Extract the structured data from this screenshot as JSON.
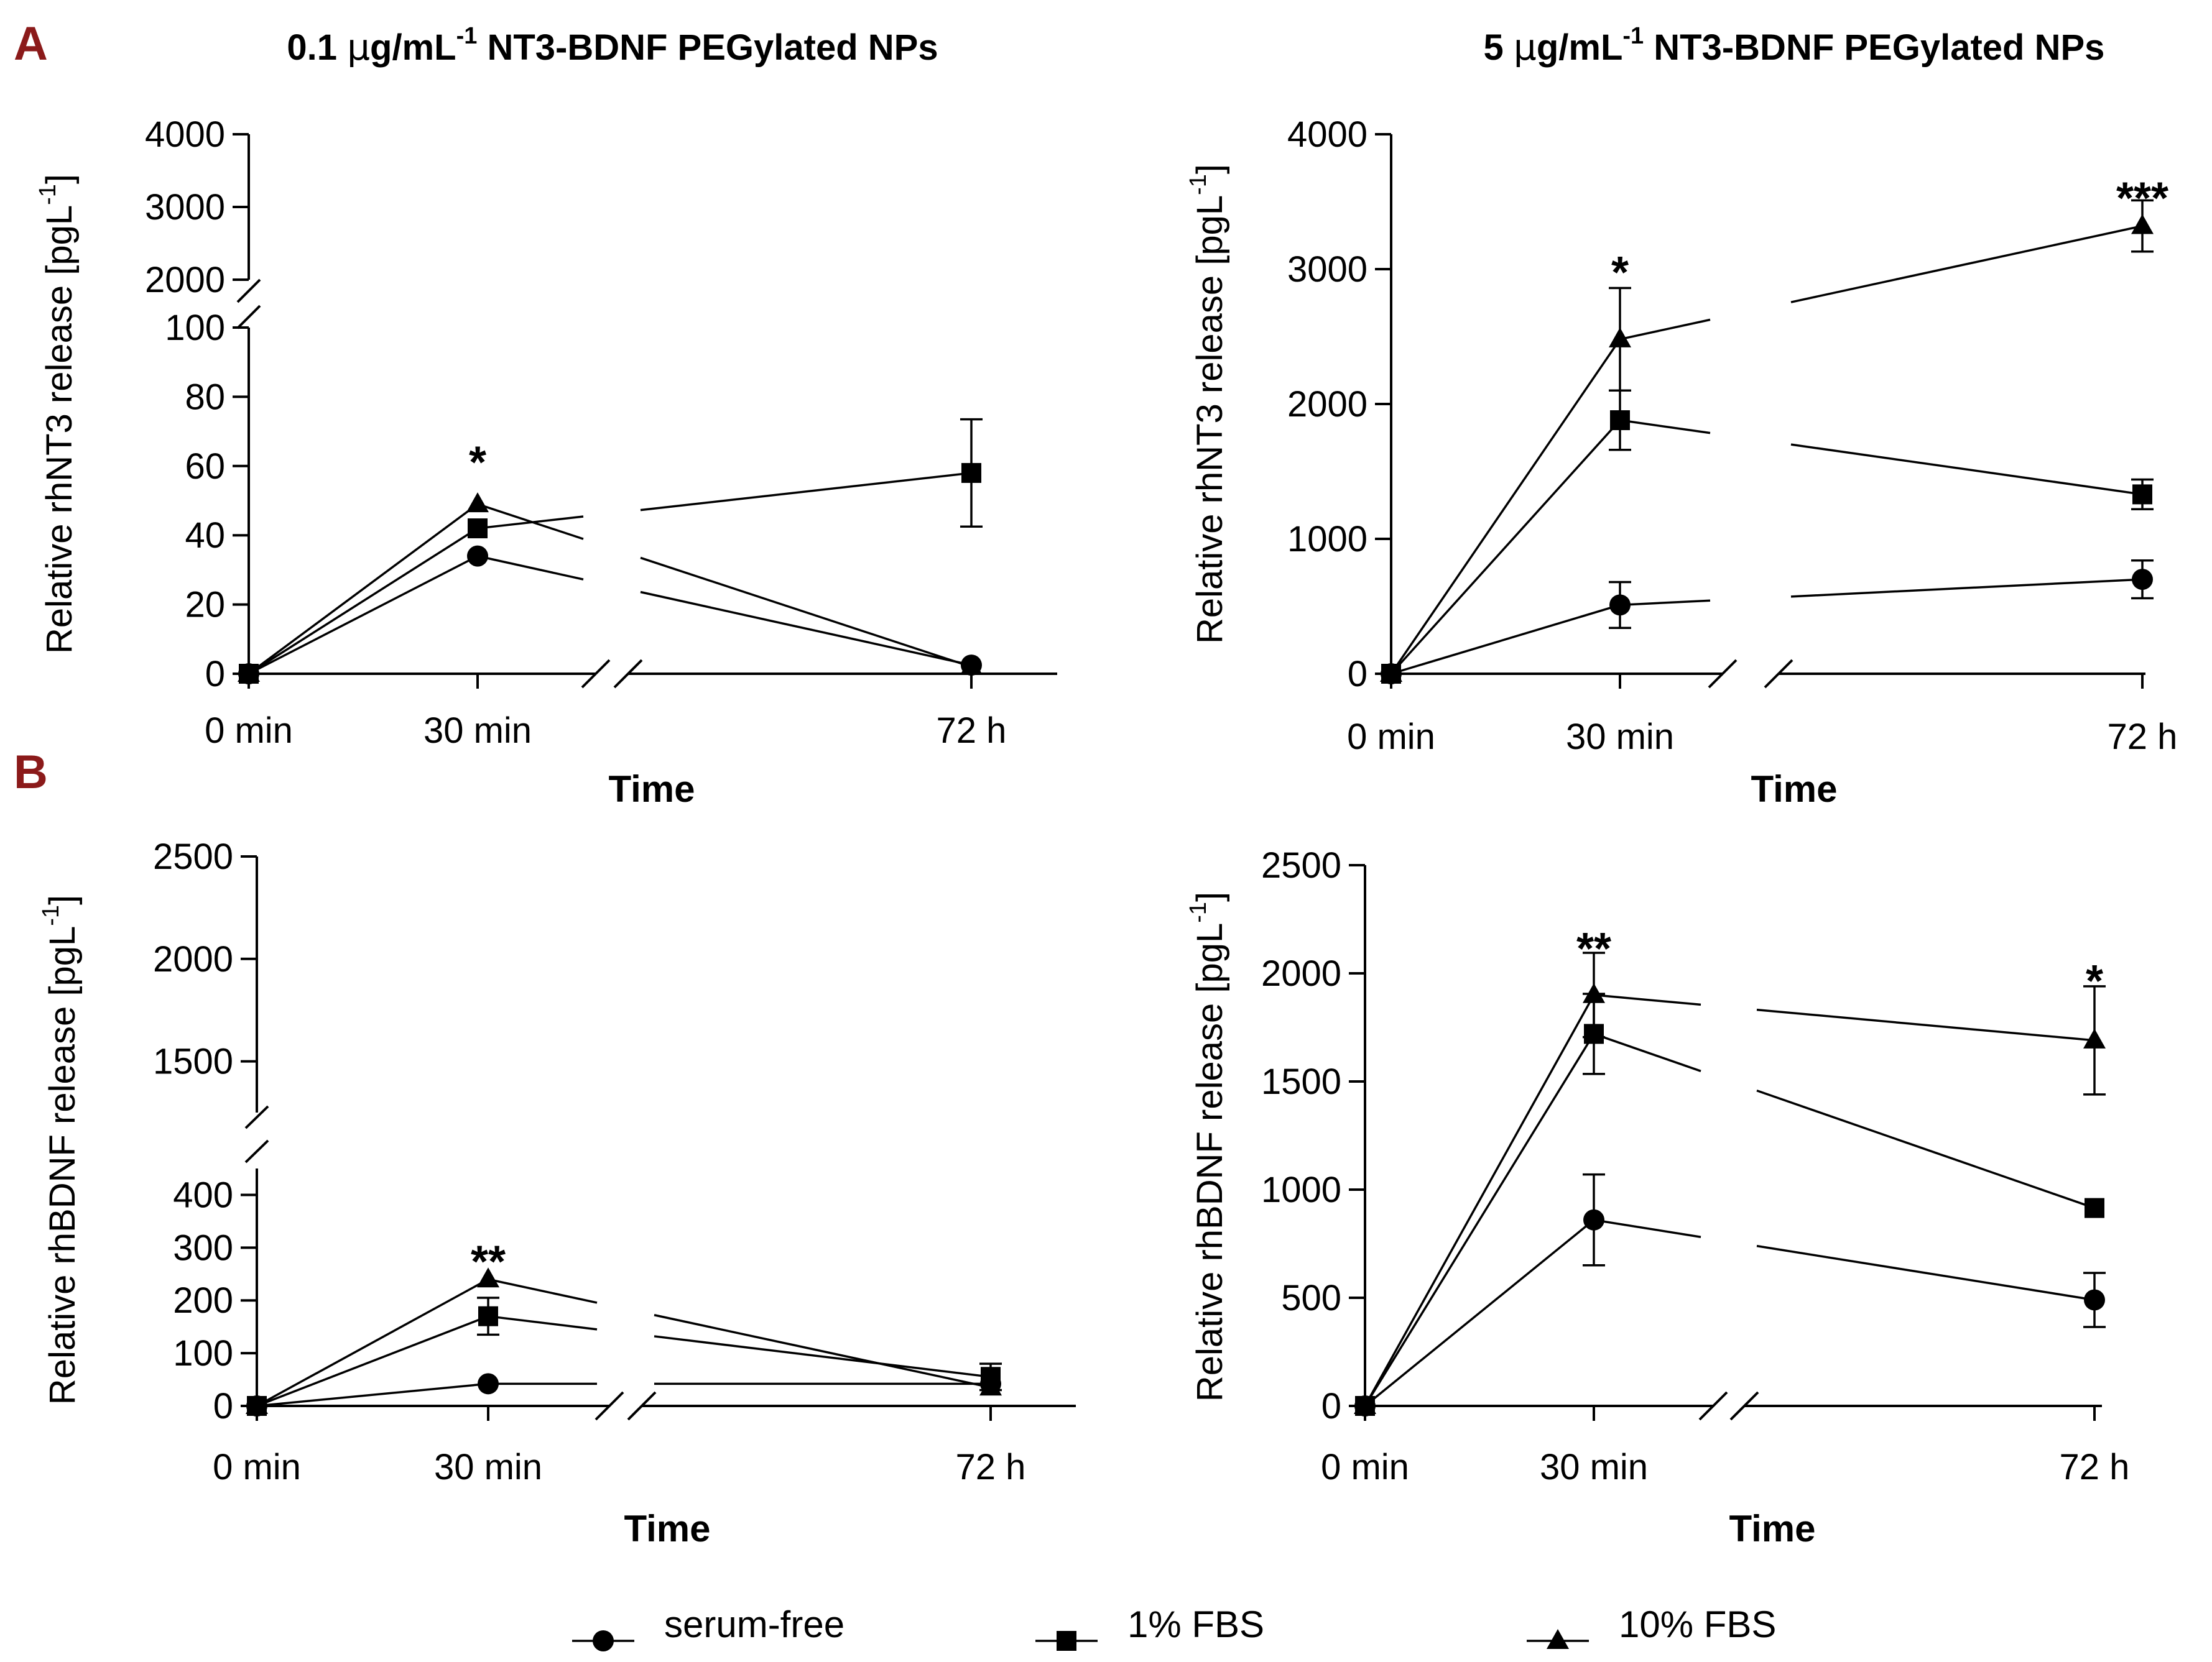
{
  "panel_labels": {
    "a": "A",
    "b": "B"
  },
  "column_titles": {
    "left": {
      "prefix": "0.1 ",
      "mu": "μ",
      "unit": "g/mL",
      "sup": "-1",
      "rest": " NT3-BDNF PEGylated NPs"
    },
    "right": {
      "prefix": "5 ",
      "mu": "μ",
      "unit": "g/mL",
      "sup": "-1",
      "rest": " NT3-BDNF PEGylated NPs"
    }
  },
  "colors": {
    "panel_label": "#8B1A1A",
    "ink": "#000000",
    "background": "#ffffff"
  },
  "legend": {
    "placement": "bottom-center",
    "entries": [
      {
        "label": "serum-free",
        "marker": "circle"
      },
      {
        "label": "1% FBS",
        "marker": "square"
      },
      {
        "label": "10% FBS",
        "marker": "triangle"
      }
    ]
  },
  "chart_data": [
    {
      "id": "A-left",
      "type": "line",
      "xlabel": "Time",
      "ylabel_main": "Relative rhNT3 release [pgL",
      "ylabel_sup": "-1",
      "ylabel_end": "]",
      "categories": [
        "0 min",
        "30 min",
        "72 h"
      ],
      "x_break": true,
      "y_segments": [
        {
          "range": [
            0,
            100
          ],
          "ticks": [
            0,
            20,
            40,
            60,
            80,
            100
          ]
        },
        {
          "range": [
            2000,
            4000
          ],
          "ticks": [
            2000,
            3000,
            4000
          ]
        }
      ],
      "series": [
        {
          "name": "serum-free",
          "marker": "circle",
          "values": [
            0,
            34,
            2.5
          ],
          "err": [
            0,
            0,
            0
          ]
        },
        {
          "name": "1% FBS",
          "marker": "square",
          "values": [
            0,
            42,
            58
          ],
          "err": [
            0,
            0,
            15.5
          ]
        },
        {
          "name": "10% FBS",
          "marker": "triangle",
          "values": [
            0,
            49,
            2
          ],
          "err": [
            0,
            0,
            0
          ]
        }
      ],
      "annotations": [
        {
          "category": "30 min",
          "text": "*",
          "y": 62
        }
      ]
    },
    {
      "id": "A-right",
      "type": "line",
      "xlabel": "Time",
      "ylabel_main": "Relative rhNT3 release [pgL",
      "ylabel_sup": "-1",
      "ylabel_end": "]",
      "categories": [
        "0 min",
        "30 min",
        "72 h"
      ],
      "x_break": true,
      "y_segments": [
        {
          "range": [
            0,
            4000
          ],
          "ticks": [
            0,
            1000,
            2000,
            3000,
            4000
          ]
        }
      ],
      "series": [
        {
          "name": "serum-free",
          "marker": "circle",
          "values": [
            0,
            510,
            700
          ],
          "err": [
            0,
            170,
            140
          ]
        },
        {
          "name": "1% FBS",
          "marker": "square",
          "values": [
            0,
            1880,
            1330
          ],
          "err": [
            0,
            220,
            110
          ]
        },
        {
          "name": "10% FBS",
          "marker": "triangle",
          "values": [
            0,
            2480,
            3320
          ],
          "err": [
            0,
            380,
            190
          ]
        }
      ],
      "annotations": [
        {
          "category": "30 min",
          "text": "*",
          "y": 3000
        },
        {
          "category": "72 h",
          "text": "***",
          "y": 3550
        }
      ]
    },
    {
      "id": "B-left",
      "type": "line",
      "xlabel": "Time",
      "ylabel_main": "Relative rhBDNF release [pgL",
      "ylabel_sup": "-1",
      "ylabel_end": "]",
      "categories": [
        "0 min",
        "30 min",
        "72 h"
      ],
      "x_break": true,
      "y_segments": [
        {
          "range": [
            0,
            450
          ],
          "ticks": [
            0,
            100,
            200,
            300,
            400
          ]
        },
        {
          "range": [
            1250,
            2500
          ],
          "ticks": [
            1500,
            2000,
            2500
          ]
        }
      ],
      "series": [
        {
          "name": "serum-free",
          "marker": "circle",
          "values": [
            0,
            42,
            42
          ],
          "err": [
            0,
            0,
            0
          ]
        },
        {
          "name": "1% FBS",
          "marker": "square",
          "values": [
            0,
            170,
            55
          ],
          "err": [
            0,
            35,
            25
          ]
        },
        {
          "name": "10% FBS",
          "marker": "triangle",
          "values": [
            0,
            240,
            35
          ],
          "err": [
            0,
            0,
            0
          ]
        }
      ],
      "annotations": [
        {
          "category": "30 min",
          "text": "**",
          "y": 280
        }
      ]
    },
    {
      "id": "B-right",
      "type": "line",
      "xlabel": "Time",
      "ylabel_main": "Relative rhBDNF release [pgL",
      "ylabel_sup": "-1",
      "ylabel_end": "]",
      "categories": [
        "0 min",
        "30 min",
        "72 h"
      ],
      "x_break": true,
      "y_segments": [
        {
          "range": [
            0,
            2500
          ],
          "ticks": [
            0,
            500,
            1000,
            1500,
            2000,
            2500
          ]
        }
      ],
      "series": [
        {
          "name": "serum-free",
          "marker": "circle",
          "values": [
            0,
            860,
            490
          ],
          "err": [
            0,
            210,
            125
          ]
        },
        {
          "name": "1% FBS",
          "marker": "square",
          "values": [
            0,
            1720,
            915
          ],
          "err": [
            0,
            185,
            0
          ]
        },
        {
          "name": "10% FBS",
          "marker": "triangle",
          "values": [
            0,
            1900,
            1690
          ],
          "err": [
            0,
            195,
            250
          ]
        }
      ],
      "annotations": [
        {
          "category": "30 min",
          "text": "**",
          "y": 2130
        },
        {
          "category": "72 h",
          "text": "*",
          "y": 1980
        }
      ]
    }
  ]
}
